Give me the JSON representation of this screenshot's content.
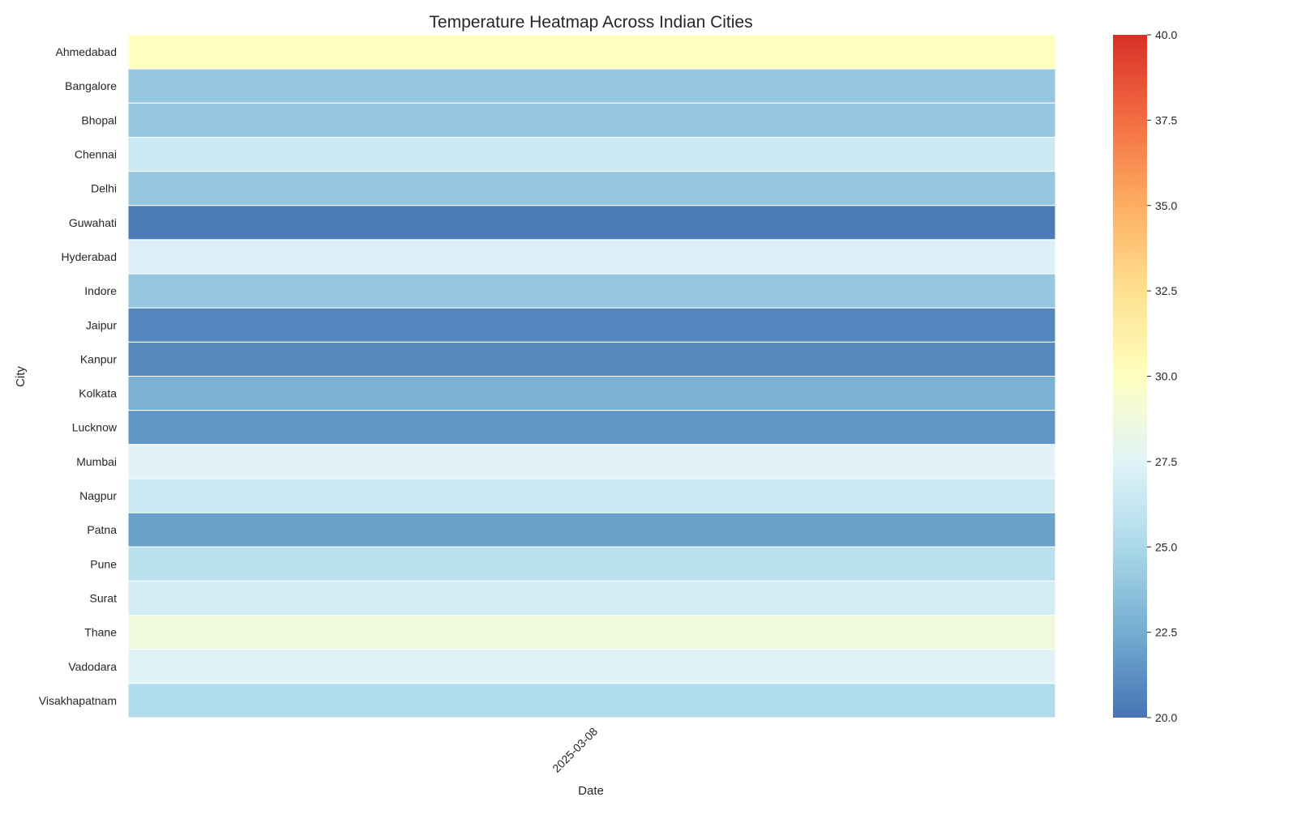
{
  "chart_data": {
    "type": "heatmap",
    "title": "Temperature Heatmap Across Indian Cities",
    "xlabel": "Date",
    "ylabel": "City",
    "x": [
      "2025-03-08"
    ],
    "categories": [
      "Ahmedabad",
      "Bangalore",
      "Bhopal",
      "Chennai",
      "Delhi",
      "Guwahati",
      "Hyderabad",
      "Indore",
      "Jaipur",
      "Kanpur",
      "Kolkata",
      "Lucknow",
      "Mumbai",
      "Nagpur",
      "Patna",
      "Pune",
      "Surat",
      "Thane",
      "Vadodara",
      "Visakhapatnam"
    ],
    "values": [
      30.0,
      24.0,
      24.0,
      26.5,
      24.0,
      20.3,
      27.2,
      24.0,
      20.8,
      20.9,
      22.8,
      21.5,
      27.6,
      26.5,
      22.0,
      25.7,
      26.9,
      28.7,
      27.4,
      25.3
    ],
    "colorbar": {
      "min": 20.0,
      "max": 40.0,
      "ticks": [
        "20.0",
        "22.5",
        "25.0",
        "27.5",
        "30.0",
        "32.5",
        "35.0",
        "37.5",
        "40.0"
      ],
      "colormap": "RdYlBu_r",
      "stops": [
        "#4575b4",
        "#74add1",
        "#abd9e9",
        "#e0f3f8",
        "#ffffbf",
        "#fee090",
        "#fdae61",
        "#f46d43",
        "#d73027"
      ]
    },
    "grid": false,
    "legend": "colorbar-right"
  }
}
